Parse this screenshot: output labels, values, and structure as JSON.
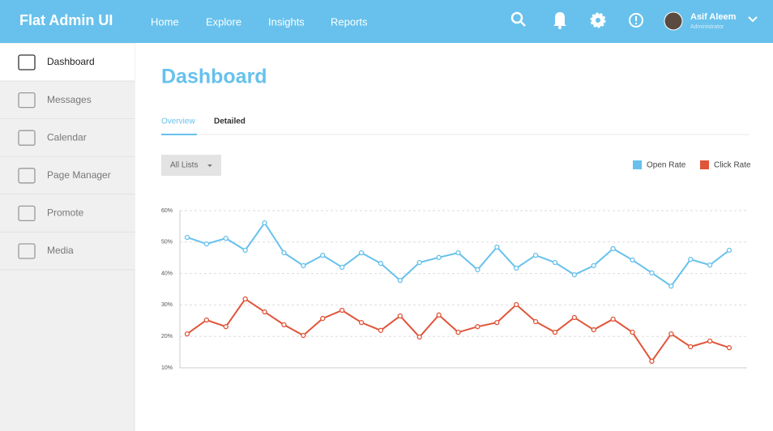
{
  "header": {
    "brand": "Flat Admin UI",
    "nav": [
      "Home",
      "Explore",
      "Insights",
      "Reports"
    ],
    "user_name": "Asif Aleem",
    "user_role": "Administrator"
  },
  "sidebar": {
    "items": [
      "Dashboard",
      "Messages",
      "Calendar",
      "Page Manager",
      "Promote",
      "Media"
    ]
  },
  "page": {
    "title": "Dashboard",
    "tabs": [
      "Overview",
      "Detailed"
    ],
    "dropdown": "All Lists"
  },
  "chart_data": {
    "type": "line",
    "categories": [
      null,
      null,
      null,
      null,
      null,
      null,
      null,
      null,
      null,
      null,
      null,
      null,
      null,
      null,
      null,
      null,
      null,
      null,
      null,
      null,
      null,
      null,
      null,
      null,
      null,
      null,
      null,
      null,
      null
    ],
    "series": [
      {
        "name": "Open Rate",
        "color": "#67c1ec",
        "values": [
          51.5,
          49.4,
          51.2,
          47.4,
          56.1,
          46.6,
          42.5,
          45.8,
          42,
          46.6,
          43.2,
          37.8,
          43.5,
          45.1,
          46.6,
          41.2,
          48.4,
          41.7,
          45.8,
          43.5,
          39.6,
          42.5,
          47.9,
          44.3,
          40.2,
          36,
          44.5,
          42.7,
          47.4
        ]
      },
      {
        "name": "Click Rate",
        "color": "#e0553a",
        "values": [
          20.8,
          25.2,
          23.1,
          31.9,
          27.8,
          23.7,
          20.3,
          25.7,
          28.3,
          24.4,
          21.9,
          26.5,
          19.8,
          26.8,
          21.3,
          23.1,
          24.4,
          30.1,
          24.7,
          21.3,
          26,
          22.1,
          25.5,
          21.3,
          12.1,
          20.8,
          16.7,
          18.5,
          16.4
        ]
      }
    ],
    "ylim": [
      10,
      60
    ],
    "yticks": [
      {
        "value": 10,
        "label": "10%"
      },
      {
        "value": 20,
        "label": "20%"
      },
      {
        "value": 30,
        "label": "30%"
      },
      {
        "value": 40,
        "label": "40%"
      },
      {
        "value": 50,
        "label": "50%"
      },
      {
        "value": 60,
        "label": "60%"
      }
    ],
    "grid": true,
    "legend": "top-right"
  }
}
